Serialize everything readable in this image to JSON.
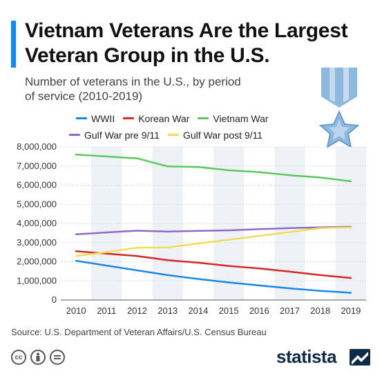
{
  "header": {
    "title": "Vietnam Veterans Are the Largest Veteran Group in the U.S.",
    "subtitle": "Number of veterans in the U.S., by period of service (2010-2019)"
  },
  "footer": {
    "source": "Source: U.S. Department of Veteran Affairs/U.S. Census Bureau",
    "brand": "statista",
    "license_icons": [
      "cc-icon",
      "attribution-icon",
      "no-derivatives-icon"
    ]
  },
  "colors": {
    "accent": "#1a86e8",
    "brand": "#0e2a47",
    "plot_band": "#eef2f7"
  },
  "chart_data": {
    "type": "line",
    "title": "Vietnam Veterans Are the Largest Veteran Group in the U.S.",
    "subtitle": "Number of veterans in the U.S., by period of service (2010-2019)",
    "x": [
      2010,
      2011,
      2012,
      2013,
      2014,
      2015,
      2016,
      2017,
      2018,
      2019
    ],
    "ylim": [
      0,
      8000000
    ],
    "yticks": [
      0,
      1000000,
      2000000,
      3000000,
      4000000,
      5000000,
      6000000,
      7000000,
      8000000
    ],
    "ytick_labels": [
      "0",
      "1,000,000",
      "2,000,000",
      "3,000,000",
      "4,000,000",
      "5,000,000",
      "6,000,000",
      "7,000,000",
      "8,000,000"
    ],
    "grid": true,
    "legend_placement": "top",
    "series": [
      {
        "name": "WWII",
        "color": "#1a86e8",
        "values": [
          2050000,
          1800000,
          1550000,
          1300000,
          1100000,
          920000,
          760000,
          610000,
          480000,
          380000
        ]
      },
      {
        "name": "Korean War",
        "color": "#d62728",
        "values": [
          2550000,
          2420000,
          2300000,
          2080000,
          1950000,
          1780000,
          1650000,
          1480000,
          1300000,
          1150000
        ]
      },
      {
        "name": "Vietnam War",
        "color": "#5cc85c",
        "values": [
          7600000,
          7500000,
          7400000,
          6980000,
          6950000,
          6780000,
          6680000,
          6520000,
          6400000,
          6200000
        ]
      },
      {
        "name": "Gulf War pre 9/11",
        "color": "#8c6bc8",
        "values": [
          3430000,
          3530000,
          3620000,
          3580000,
          3610000,
          3640000,
          3700000,
          3760000,
          3800000,
          3830000
        ]
      },
      {
        "name": "Gulf War post 9/11",
        "color": "#f2dc57",
        "values": [
          2300000,
          2500000,
          2730000,
          2750000,
          2950000,
          3150000,
          3350000,
          3550000,
          3760000,
          3800000
        ]
      }
    ]
  }
}
